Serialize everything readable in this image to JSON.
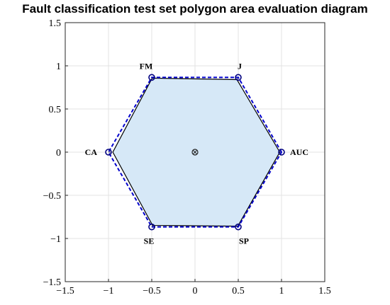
{
  "chart_data": {
    "type": "radar",
    "title": "Fault classification test set polygon area evaluation diagram",
    "xlim": [
      -1.5,
      1.5
    ],
    "ylim": [
      -1.5,
      1.5
    ],
    "xticks": [
      "−1.5",
      "−1",
      "−0.5",
      "0",
      "0.5",
      "1",
      "1.5"
    ],
    "yticks": [
      "−1.5",
      "−1",
      "−0.5",
      "0",
      "0.5",
      "1",
      "1.5"
    ],
    "xtick_values": [
      -1.5,
      -1,
      -0.5,
      0,
      0.5,
      1,
      1.5
    ],
    "ytick_values": [
      -1.5,
      -1,
      -0.5,
      0,
      0.5,
      1,
      1.5
    ],
    "grid": true,
    "categories": [
      "AUC",
      "J",
      "FM",
      "CA",
      "SE",
      "SP"
    ],
    "reference_polygon": {
      "style": "dashed",
      "color": "#0000cc",
      "points": [
        {
          "label": "AUC",
          "x": 1,
          "y": 0
        },
        {
          "label": "J",
          "x": 0.5,
          "y": 0.866
        },
        {
          "label": "FM",
          "x": -0.5,
          "y": 0.866
        },
        {
          "label": "CA",
          "x": -1,
          "y": 0
        },
        {
          "label": "SE",
          "x": -0.5,
          "y": -0.866
        },
        {
          "label": "SP",
          "x": 0.5,
          "y": -0.866
        }
      ]
    },
    "result_polygon": {
      "fill": "#d6e8f7",
      "stroke": "#000000",
      "values": [
        0.98,
        0.97,
        0.99,
        0.95,
        0.98,
        0.99
      ]
    },
    "center": {
      "x": 0,
      "y": 0
    }
  }
}
